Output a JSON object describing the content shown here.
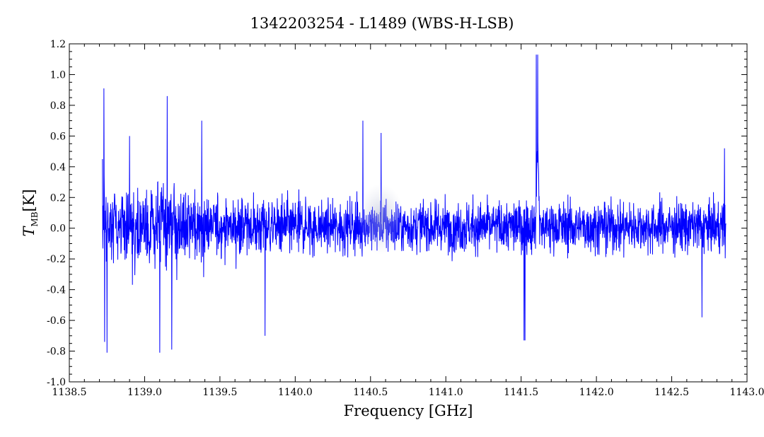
{
  "chart_data": {
    "type": "line",
    "title": "1342203254 - L1489 (WBS-H-LSB)",
    "xlabel": "Frequency [GHz]",
    "ylabel_main": "T",
    "ylabel_sub": "MB",
    "ylabel_unit": "[K]",
    "xlim": [
      1138.5,
      1143.0
    ],
    "ylim": [
      -1.0,
      1.2
    ],
    "x_ticks": [
      1138.5,
      1139.0,
      1139.5,
      1140.0,
      1140.5,
      1141.0,
      1141.5,
      1142.0,
      1142.5,
      1143.0
    ],
    "x_tick_labels": [
      "1138.5",
      "1139.0",
      "1139.5",
      "1140.0",
      "1140.5",
      "1141.0",
      "1141.5",
      "1142.0",
      "1142.5",
      "1143.0"
    ],
    "y_ticks": [
      -1.0,
      -0.8,
      -0.6,
      -0.4,
      -0.2,
      0.0,
      0.2,
      0.4,
      0.6,
      0.8,
      1.0,
      1.2
    ],
    "y_tick_labels": [
      "-1.0",
      "-0.8",
      "-0.6",
      "-0.4",
      "-0.2",
      "0.0",
      "0.2",
      "0.4",
      "0.6",
      "0.8",
      "1.0",
      "1.2"
    ],
    "line_color": "#0000ff",
    "series": [
      {
        "x_start": 1138.72,
        "x_end": 1142.86,
        "baseline_noise_rms": 0.15,
        "features": [
          {
            "x": 1141.61,
            "peak": 1.13,
            "label": "emission line"
          },
          {
            "x": 1141.525,
            "peak": -0.73,
            "label": "absorption spike"
          }
        ],
        "samples": [
          [
            1138.72,
            0.45
          ],
          [
            1138.73,
            0.91
          ],
          [
            1138.735,
            -0.74
          ],
          [
            1138.75,
            -0.81
          ],
          [
            1138.9,
            0.6
          ],
          [
            1139.1,
            -0.81
          ],
          [
            1139.15,
            0.86
          ],
          [
            1139.18,
            -0.79
          ],
          [
            1139.38,
            0.7
          ],
          [
            1139.8,
            -0.7
          ],
          [
            1140.45,
            0.7
          ],
          [
            1140.57,
            0.62
          ],
          [
            1141.52,
            -0.73
          ],
          [
            1141.6,
            1.13
          ],
          [
            1142.7,
            -0.58
          ],
          [
            1142.85,
            0.52
          ]
        ]
      }
    ],
    "grid": false
  }
}
